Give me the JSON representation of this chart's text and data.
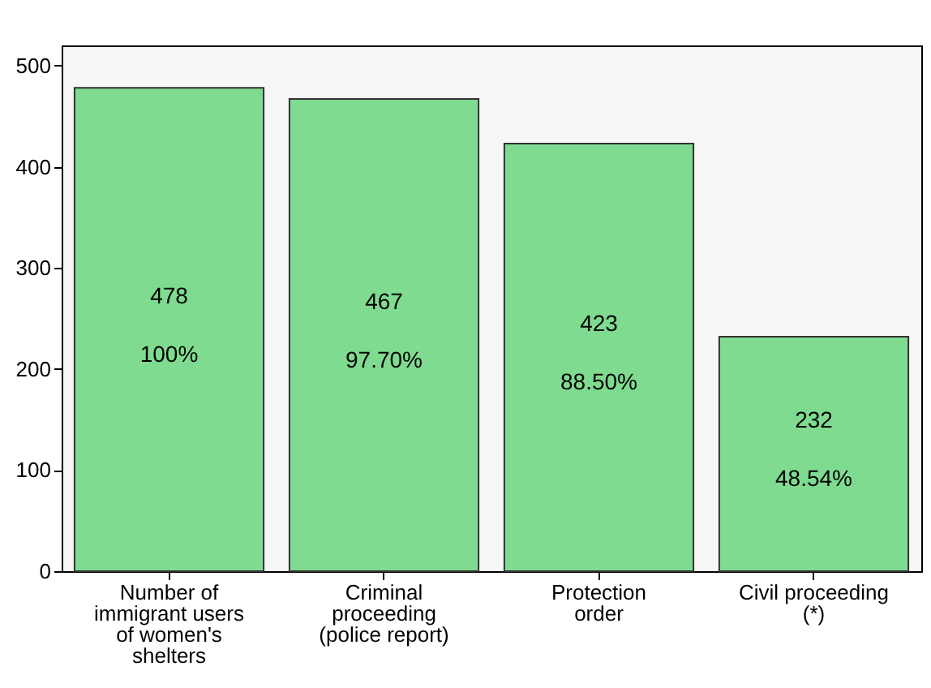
{
  "chart_data": {
    "type": "bar",
    "categories": [
      "Number of\nimmigrant users\nof women's\nshelters",
      "Criminal\nproceeding\n(police report)",
      "Protection\norder",
      "Civil proceeding\n(*)"
    ],
    "values": [
      478,
      467,
      423,
      232
    ],
    "color": "#7fdb8f",
    "data_labels": true,
    "annotations": [
      "100%",
      "97.70%",
      "88.50%",
      "48.54%"
    ],
    "ylim": [
      0,
      520
    ],
    "yticks": [
      0,
      100,
      200,
      300,
      400,
      500
    ],
    "grid": false
  }
}
